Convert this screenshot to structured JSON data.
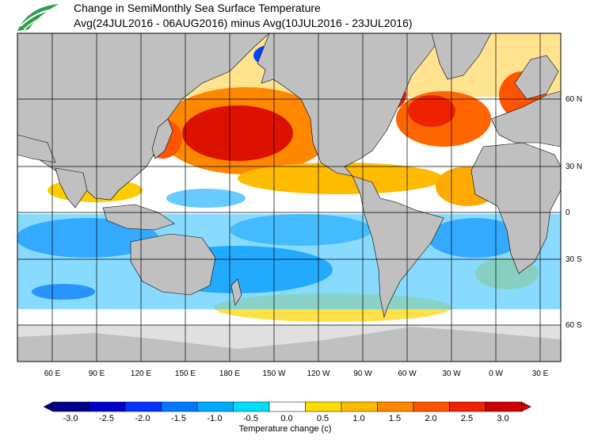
{
  "header": {
    "title_line1": "Change in SemiMonthly Sea Surface Temperature",
    "title_line2": "Avg(24JUL2016 - 06AUG2016) minus Avg(10JUL2016 - 23JUL2016)"
  },
  "logo": {
    "name": "leaf-logo-icon",
    "color": "#2e9e4a"
  },
  "map": {
    "lat_labels": [
      "60 N",
      "30 N",
      "0",
      "30 S",
      "60 S"
    ],
    "lon_labels": [
      "60 E",
      "90 E",
      "120 E",
      "150 E",
      "180 E",
      "150 W",
      "120 W",
      "90 W",
      "60 W",
      "30 W",
      "0 W",
      "30 E"
    ],
    "colors": {
      "land": "#c0c0c0",
      "ice": "#e0e0e0",
      "ocean_neutral": "#ffffff",
      "gridline": "#000000"
    }
  },
  "colorbar": {
    "title": "Temperature change  (c)",
    "ticks": [
      "-3.0",
      "-2.5",
      "-2.0",
      "-1.5",
      "-1.0",
      "-0.5",
      "0.0",
      "0.5",
      "1.0",
      "1.5",
      "2.0",
      "2.5",
      "3.0"
    ],
    "colors": [
      "#000088",
      "#0000cc",
      "#0033ff",
      "#0077ff",
      "#00aaff",
      "#00ddff",
      "#ffffff",
      "#ffdd00",
      "#ffbb00",
      "#ff8800",
      "#ff5500",
      "#ee2200",
      "#cc0000"
    ],
    "under_color": "#000080",
    "over_color": "#cc0000"
  }
}
